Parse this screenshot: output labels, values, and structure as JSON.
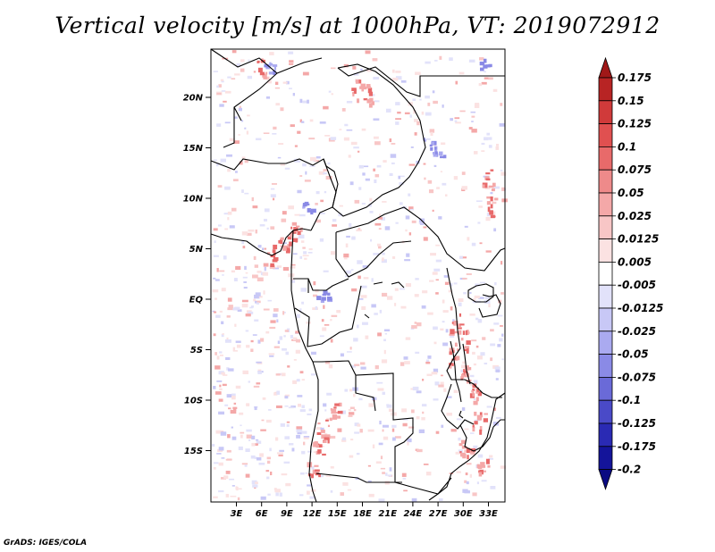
{
  "title": "Vertical velocity [m/s] at 1000hPa, VT: 2019072912",
  "credit": "GrADS: IGES/COLA",
  "map": {
    "lat_labels": [
      "20N",
      "15N",
      "10N",
      "5N",
      "EQ",
      "5S",
      "10S",
      "15S"
    ],
    "lon_labels": [
      "3E",
      "6E",
      "9E",
      "12E",
      "15E",
      "18E",
      "21E",
      "24E",
      "27E",
      "30E",
      "33E"
    ],
    "lon_range": [
      0,
      35
    ],
    "lat_range": [
      -20,
      24.5
    ]
  },
  "colorbar": {
    "labels": [
      "0.175",
      "0.15",
      "0.125",
      "0.1",
      "0.075",
      "0.05",
      "0.025",
      "0.0125",
      "0.005",
      "-0.005",
      "-0.0125",
      "-0.025",
      "-0.05",
      "-0.075",
      "-0.1",
      "-0.125",
      "-0.175",
      "-0.2"
    ],
    "colors": [
      "#a01818",
      "#b82424",
      "#d03a3a",
      "#e05050",
      "#e86a6a",
      "#ee8a8a",
      "#f4a8a8",
      "#f8c6c6",
      "#fbe2e2",
      "#ffffff",
      "#e2e2fa",
      "#c8c8f6",
      "#aaaaf0",
      "#8a8ae6",
      "#6a6ad8",
      "#4a4ac8",
      "#2a2ab4",
      "#14149a",
      "#0a0a82"
    ]
  }
}
